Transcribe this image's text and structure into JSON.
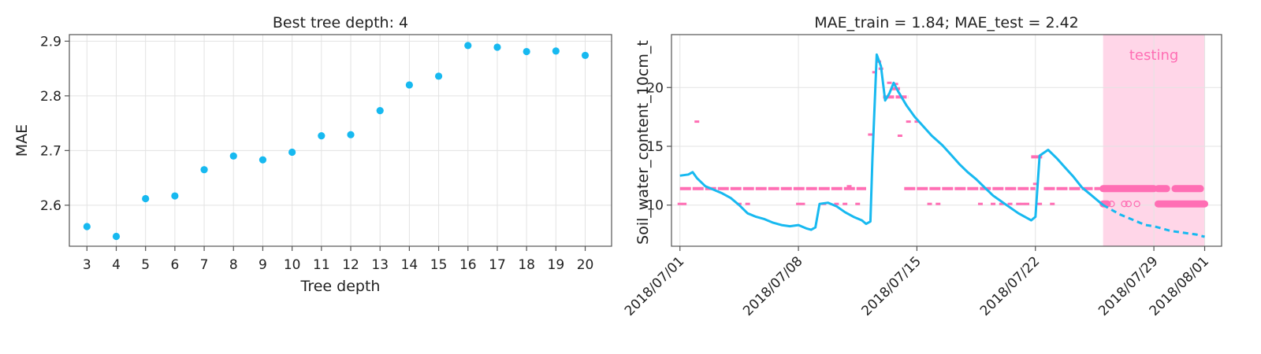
{
  "colors": {
    "series_blue": "#17b9f0",
    "series_pink": "#ff6eb4",
    "testing_band": "#ffd6e8",
    "frame": "#555555",
    "grid": "#e3e3e3"
  },
  "chart_data": [
    {
      "type": "scatter",
      "title": "Best tree depth: 4",
      "xlabel": "Tree depth",
      "ylabel": "MAE",
      "xlim": [
        2.4,
        20.9
      ],
      "ylim": [
        2.525,
        2.912
      ],
      "grid": true,
      "x_ticks": [
        3,
        4,
        5,
        6,
        7,
        8,
        9,
        10,
        11,
        12,
        13,
        14,
        15,
        16,
        17,
        18,
        19,
        20
      ],
      "y_ticks": [
        2.6,
        2.7,
        2.8,
        2.9
      ],
      "x_tick_labels": [
        "3",
        "4",
        "5",
        "6",
        "7",
        "8",
        "9",
        "10",
        "11",
        "12",
        "13",
        "14",
        "15",
        "16",
        "17",
        "18",
        "19",
        "20"
      ],
      "y_tick_labels": [
        "2.6",
        "2.7",
        "2.8",
        "2.9"
      ],
      "series": [
        {
          "x": [
            3,
            4,
            5,
            6,
            7,
            8,
            9,
            10,
            11,
            12,
            13,
            14,
            15,
            16,
            17,
            18,
            19,
            20
          ],
          "y": [
            2.561,
            2.543,
            2.612,
            2.617,
            2.665,
            2.69,
            2.683,
            2.697,
            2.727,
            2.729,
            2.773,
            2.82,
            2.836,
            2.892,
            2.889,
            2.881,
            2.882,
            2.874
          ]
        }
      ]
    },
    {
      "type": "line",
      "title": "MAE_train = 1.84; MAE_test = 2.42",
      "xlabel": "",
      "ylabel": "Soil_water_content_10cm_t",
      "xlim": [
        "2018-06-30T12:00",
        "2018-08-02T00:00"
      ],
      "ylim": [
        6.5,
        24.5
      ],
      "grid": true,
      "x_tick_labels": [
        "2018/07/01",
        "2018/07/08",
        "2018/07/15",
        "2018/07/22",
        "2018/07/29",
        "2018/08/01"
      ],
      "x_tick_dates": [
        "2018-07-01",
        "2018-07-08",
        "2018-07-15",
        "2018-07-22",
        "2018-07-29",
        "2018-08-01"
      ],
      "y_ticks": [
        10,
        15,
        20
      ],
      "y_tick_labels": [
        "10",
        "15",
        "20"
      ],
      "annotation": "testing",
      "testing_span": [
        "2018-07-26T00:00",
        "2018-08-01T00:00"
      ],
      "observed": {
        "style": "line (solid in training, dashed in testing)",
        "points": [
          [
            "2018-07-01T00:00",
            12.5
          ],
          [
            "2018-07-01T12:00",
            12.6
          ],
          [
            "2018-07-01T18:00",
            12.8
          ],
          [
            "2018-07-02T00:00",
            12.3
          ],
          [
            "2018-07-02T12:00",
            11.6
          ],
          [
            "2018-07-03T00:00",
            11.3
          ],
          [
            "2018-07-03T12:00",
            11.0
          ],
          [
            "2018-07-04T00:00",
            10.6
          ],
          [
            "2018-07-04T12:00",
            10.0
          ],
          [
            "2018-07-05T00:00",
            9.3
          ],
          [
            "2018-07-05T12:00",
            9.0
          ],
          [
            "2018-07-06T00:00",
            8.8
          ],
          [
            "2018-07-06T12:00",
            8.5
          ],
          [
            "2018-07-07T00:00",
            8.3
          ],
          [
            "2018-07-07T12:00",
            8.2
          ],
          [
            "2018-07-08T00:00",
            8.3
          ],
          [
            "2018-07-08T12:00",
            8.0
          ],
          [
            "2018-07-08T18:00",
            7.9
          ],
          [
            "2018-07-09T00:00",
            8.1
          ],
          [
            "2018-07-09T06:00",
            10.1
          ],
          [
            "2018-07-09T18:00",
            10.2
          ],
          [
            "2018-07-10T06:00",
            9.9
          ],
          [
            "2018-07-10T18:00",
            9.4
          ],
          [
            "2018-07-11T06:00",
            9.0
          ],
          [
            "2018-07-11T18:00",
            8.7
          ],
          [
            "2018-07-12T00:00",
            8.4
          ],
          [
            "2018-07-12T06:00",
            8.6
          ],
          [
            "2018-07-12T09:00",
            14.0
          ],
          [
            "2018-07-12T15:00",
            22.8
          ],
          [
            "2018-07-12T21:00",
            21.8
          ],
          [
            "2018-07-13T03:00",
            18.9
          ],
          [
            "2018-07-13T09:00",
            19.5
          ],
          [
            "2018-07-13T15:00",
            20.4
          ],
          [
            "2018-07-13T21:00",
            19.7
          ],
          [
            "2018-07-14T09:00",
            18.5
          ],
          [
            "2018-07-14T21:00",
            17.5
          ],
          [
            "2018-07-15T09:00",
            16.7
          ],
          [
            "2018-07-15T21:00",
            15.9
          ],
          [
            "2018-07-16T12:00",
            15.1
          ],
          [
            "2018-07-17T00:00",
            14.3
          ],
          [
            "2018-07-17T12:00",
            13.5
          ],
          [
            "2018-07-18T00:00",
            12.8
          ],
          [
            "2018-07-18T12:00",
            12.2
          ],
          [
            "2018-07-19T00:00",
            11.5
          ],
          [
            "2018-07-19T12:00",
            10.8
          ],
          [
            "2018-07-20T00:00",
            10.3
          ],
          [
            "2018-07-20T12:00",
            9.8
          ],
          [
            "2018-07-21T00:00",
            9.3
          ],
          [
            "2018-07-21T12:00",
            8.9
          ],
          [
            "2018-07-21T18:00",
            8.7
          ],
          [
            "2018-07-22T00:00",
            9.0
          ],
          [
            "2018-07-22T06:00",
            14.2
          ],
          [
            "2018-07-22T18:00",
            14.7
          ],
          [
            "2018-07-23T06:00",
            14.0
          ],
          [
            "2018-07-23T18:00",
            13.2
          ],
          [
            "2018-07-24T06:00",
            12.4
          ],
          [
            "2018-07-24T18:00",
            11.5
          ],
          [
            "2018-07-25T06:00",
            10.9
          ],
          [
            "2018-07-25T18:00",
            10.3
          ],
          [
            "2018-07-26T00:00",
            10.0
          ],
          [
            "2018-07-26T12:00",
            9.6
          ],
          [
            "2018-07-27T00:00",
            9.2
          ],
          [
            "2018-07-27T12:00",
            8.9
          ],
          [
            "2018-07-28T00:00",
            8.6
          ],
          [
            "2018-07-28T12:00",
            8.3
          ],
          [
            "2018-07-29T00:00",
            8.2
          ],
          [
            "2018-07-29T12:00",
            8.0
          ],
          [
            "2018-07-30T00:00",
            7.8
          ],
          [
            "2018-07-30T12:00",
            7.7
          ],
          [
            "2018-07-31T00:00",
            7.6
          ],
          [
            "2018-07-31T12:00",
            7.5
          ],
          [
            "2018-08-01T00:00",
            7.3
          ]
        ]
      },
      "predicted": {
        "style": "pink markers",
        "segments": [
          {
            "from": "2018-07-01T00:00",
            "to": "2018-07-12T00:00",
            "y": 11.4
          },
          {
            "from": "2018-07-13T00:00",
            "to": "2018-07-14T12:00",
            "y": 19.2
          },
          {
            "from": "2018-07-13T12:00",
            "to": "2018-07-14T00:00",
            "y": 19.9
          },
          {
            "from": "2018-07-14T06:00",
            "to": "2018-07-22T00:00",
            "y": 11.4
          },
          {
            "from": "2018-07-21T18:00",
            "to": "2018-07-22T12:00",
            "y": 14.1
          },
          {
            "from": "2018-07-22T12:00",
            "to": "2018-07-26T00:00",
            "y": 11.4
          }
        ],
        "scattered": [
          [
            "2018-07-01T00:00",
            10.1
          ],
          [
            "2018-07-01T06:00",
            10.1
          ],
          [
            "2018-07-02T00:00",
            17.1
          ],
          [
            "2018-07-04T12:00",
            10.1
          ],
          [
            "2018-07-05T00:00",
            10.1
          ],
          [
            "2018-07-08T00:00",
            10.1
          ],
          [
            "2018-07-08T06:00",
            10.1
          ],
          [
            "2018-07-09T12:00",
            10.1
          ],
          [
            "2018-07-10T06:00",
            10.1
          ],
          [
            "2018-07-10T18:00",
            10.1
          ],
          [
            "2018-07-11T00:00",
            11.6
          ],
          [
            "2018-07-11T12:00",
            10.1
          ],
          [
            "2018-07-12T06:00",
            16.0
          ],
          [
            "2018-07-12T12:00",
            21.3
          ],
          [
            "2018-07-12T18:00",
            22.2
          ],
          [
            "2018-07-12T21:00",
            21.6
          ],
          [
            "2018-07-13T09:00",
            20.4
          ],
          [
            "2018-07-13T18:00",
            20.3
          ],
          [
            "2018-07-14T00:00",
            15.9
          ],
          [
            "2018-07-14T12:00",
            17.1
          ],
          [
            "2018-07-15T00:00",
            17.1
          ],
          [
            "2018-07-15T18:00",
            10.1
          ],
          [
            "2018-07-16T06:00",
            10.1
          ],
          [
            "2018-07-18T18:00",
            10.1
          ],
          [
            "2018-07-19T12:00",
            10.1
          ],
          [
            "2018-07-20T00:00",
            10.1
          ],
          [
            "2018-07-20T12:00",
            10.1
          ],
          [
            "2018-07-21T00:00",
            10.1
          ],
          [
            "2018-07-21T06:00",
            10.1
          ],
          [
            "2018-07-21T12:00",
            10.1
          ],
          [
            "2018-07-22T00:00",
            11.8
          ],
          [
            "2018-07-22T06:00",
            10.1
          ],
          [
            "2018-07-23T00:00",
            10.1
          ]
        ],
        "testing_segments": [
          {
            "from": "2018-07-26T00:00",
            "to": "2018-07-29T00:00",
            "y": 11.4
          },
          {
            "from": "2018-07-29T06:00",
            "to": "2018-07-29T18:00",
            "y": 11.4
          },
          {
            "from": "2018-07-30T06:00",
            "to": "2018-07-31T18:00",
            "y": 11.4
          },
          {
            "from": "2018-07-26T00:00",
            "to": "2018-07-26T06:00",
            "y": 10.1
          },
          {
            "from": "2018-07-29T06:00",
            "to": "2018-08-01T00:00",
            "y": 10.1
          }
        ],
        "testing_open": [
          [
            "2018-07-26T12:00",
            10.1
          ],
          [
            "2018-07-27T06:00",
            10.1
          ],
          [
            "2018-07-27T12:00",
            10.1
          ],
          [
            "2018-07-28T00:00",
            10.1
          ]
        ]
      }
    }
  ]
}
